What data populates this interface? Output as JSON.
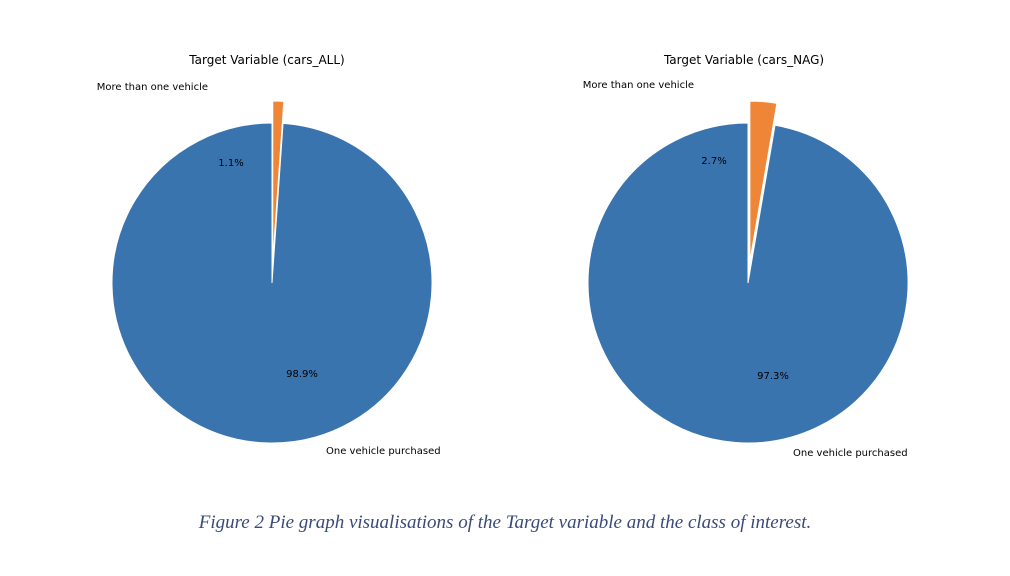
{
  "figure": {
    "caption": "Figure 2 Pie graph visualisations of the Target variable and the class of interest."
  },
  "colors": {
    "one_vehicle": "#3a74ae",
    "more_than_one": "#ef8536"
  },
  "chart_data": [
    {
      "type": "pie",
      "title": "Target Variable (cars_ALL)",
      "slices": [
        {
          "label": "One vehicle purchased",
          "value": 98.9,
          "pct_label": "98.9%",
          "color": "#3a74ae",
          "exploded": false
        },
        {
          "label": "More than one vehicle",
          "value": 1.1,
          "pct_label": "1.1%",
          "color": "#ef8536",
          "exploded": true
        }
      ]
    },
    {
      "type": "pie",
      "title": "Target Variable (cars_NAG)",
      "slices": [
        {
          "label": "One vehicle purchased",
          "value": 97.3,
          "pct_label": "97.3%",
          "color": "#3a74ae",
          "exploded": false
        },
        {
          "label": "More than one vehicle",
          "value": 2.7,
          "pct_label": "2.7%",
          "color": "#ef8536",
          "exploded": true
        }
      ]
    }
  ]
}
